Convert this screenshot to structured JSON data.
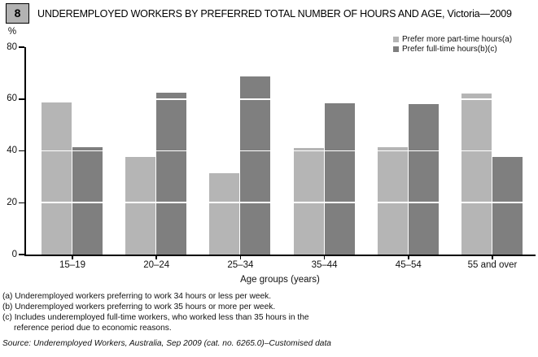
{
  "badge": "8",
  "title": "UNDEREMPLOYED WORKERS BY PREFERRED TOTAL NUMBER OF HOURS AND AGE, Victoria—2009",
  "source": "Source: Underemployed Workers, Australia, Sep 2009 (cat. no. 6265.0)–Customised data",
  "colors": {
    "light_bar": "#b5b5b5",
    "dark_bar": "#7f7f7f",
    "badge_bg": "#b2b2b2",
    "axis": "#000000",
    "gridline": "#ffffff"
  },
  "chart_data": {
    "type": "bar",
    "title": "UNDEREMPLOYED WORKERS BY PREFERRED TOTAL NUMBER OF HOURS AND AGE, Victoria—2009",
    "ylabel": "%",
    "xlabel": "Age groups (years)",
    "ylim": [
      0,
      80
    ],
    "yticks": [
      0,
      20,
      40,
      60,
      80
    ],
    "grid": "white horizontal gridlines at 20/40/60 drawn over bars",
    "legend_position": "top-right",
    "categories": [
      "15–19",
      "20–24",
      "25–34",
      "35–44",
      "45–54",
      "55 and over"
    ],
    "series": [
      {
        "name": "Prefer more part-time hours(a)",
        "color": "#b5b5b5",
        "values": [
          58.6,
          37.6,
          31.3,
          41.0,
          41.3,
          62.1
        ]
      },
      {
        "name": "Prefer full-time hours(b)(c)",
        "color": "#7f7f7f",
        "values": [
          41.3,
          62.4,
          68.7,
          58.3,
          58.0,
          37.6
        ]
      }
    ]
  },
  "footnotes": [
    {
      "text": "(a) Underemployed workers preferring to work 34 hours or less per week.",
      "indent": false
    },
    {
      "text": "(b) Underemployed workers preferring to work 35 hours or more per week.",
      "indent": false
    },
    {
      "text": "(c) Includes underemployed full-time workers, who worked less than 35 hours in the",
      "indent": false
    },
    {
      "text": "reference period due to economic reasons.",
      "indent": true
    }
  ]
}
